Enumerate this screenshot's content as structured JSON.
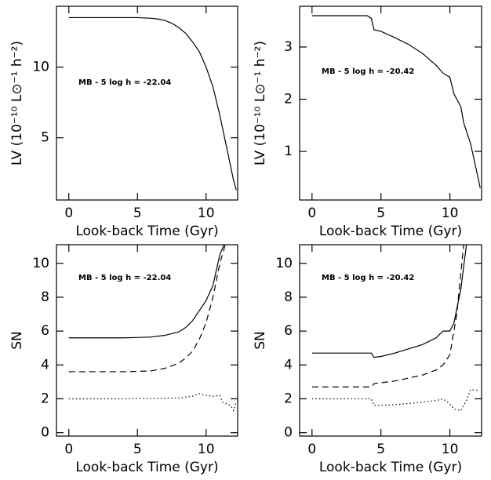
{
  "chart_data": [
    {
      "type": "line",
      "xlabel": "Look-back Time (Gyr)",
      "ylabel": "LV (10⁻¹⁰ L⊙⁻¹ h⁻²)",
      "annotation": "MB - 5 log h = -22.04",
      "xlim": [
        -0.9,
        12.3
      ],
      "xticks": [
        0,
        5,
        10
      ],
      "ylim": [
        0.6,
        14.3
      ],
      "yticks": [
        5,
        10
      ],
      "series": [
        {
          "color": "#000000",
          "style": "solid",
          "x": [
            0,
            1,
            2,
            3,
            4,
            5,
            6,
            6.5,
            7,
            7.5,
            8,
            8.5,
            9,
            9.5,
            10,
            10.5,
            11,
            11.5,
            12,
            12.2
          ],
          "values": [
            13.5,
            13.5,
            13.5,
            13.5,
            13.5,
            13.5,
            13.45,
            13.4,
            13.3,
            13.1,
            12.8,
            12.4,
            11.8,
            11.1,
            10,
            8.6,
            6.6,
            4.3,
            2.0,
            1.3
          ]
        }
      ]
    },
    {
      "type": "line",
      "xlabel": "Look-back Time (Gyr)",
      "ylabel": "LV (10⁻¹⁰ L⊙⁻¹ h⁻²)",
      "annotation": "MB - 5 log h = -20.42",
      "xlim": [
        -0.9,
        12.3
      ],
      "xticks": [
        0,
        5,
        10
      ],
      "ylim": [
        0.07,
        3.78
      ],
      "yticks": [
        1,
        2,
        3
      ],
      "series": [
        {
          "color": "#000000",
          "style": "solid",
          "x": [
            0,
            2,
            4,
            4.3,
            4.5,
            5,
            6,
            7,
            8,
            9,
            9.5,
            10,
            10.3,
            10.8,
            11,
            11.5,
            12,
            12.2
          ],
          "values": [
            3.6,
            3.6,
            3.6,
            3.55,
            3.33,
            3.3,
            3.18,
            3.05,
            2.88,
            2.65,
            2.5,
            2.42,
            2.1,
            1.85,
            1.55,
            1.15,
            0.55,
            0.3
          ]
        }
      ]
    },
    {
      "type": "line",
      "xlabel": "Look-back Time (Gyr)",
      "ylabel": "SN",
      "annotation": "MB - 5 log h = -22.04",
      "xlim": [
        -0.9,
        12.3
      ],
      "xticks": [
        0,
        5,
        10
      ],
      "ylim": [
        -0.2,
        11.1
      ],
      "yticks": [
        0,
        2,
        4,
        6,
        8,
        10
      ],
      "series": [
        {
          "color": "#000000",
          "style": "solid",
          "x": [
            0,
            2,
            4,
            5,
            6,
            7,
            8,
            8.5,
            9,
            9.5,
            10,
            10.5,
            11,
            11.3
          ],
          "values": [
            5.6,
            5.6,
            5.6,
            5.62,
            5.65,
            5.75,
            5.95,
            6.2,
            6.6,
            7.2,
            7.8,
            8.7,
            10.5,
            11.1
          ]
        },
        {
          "color": "#000000",
          "style": "dashed",
          "x": [
            0,
            2,
            4,
            5,
            6,
            7,
            8,
            8.5,
            9,
            9.5,
            10,
            10.5,
            11,
            11.4
          ],
          "values": [
            3.6,
            3.6,
            3.6,
            3.62,
            3.65,
            3.8,
            4.1,
            4.4,
            4.8,
            5.5,
            6.5,
            8,
            10,
            11.1
          ]
        },
        {
          "color": "#000000",
          "style": "dotted",
          "x": [
            0,
            2,
            4,
            6,
            8,
            9,
            9.5,
            10,
            10.5,
            11,
            11.2,
            11.8,
            12,
            12.2
          ],
          "values": [
            2,
            2,
            2,
            2.02,
            2.05,
            2.15,
            2.3,
            2.2,
            2.15,
            2.2,
            1.8,
            1.6,
            1.3,
            1.8
          ]
        }
      ]
    },
    {
      "type": "line",
      "xlabel": "Look-back Time (Gyr)",
      "ylabel": "SN",
      "annotation": "MB - 5 log h = -20.42",
      "xlim": [
        -0.9,
        12.3
      ],
      "xticks": [
        0,
        5,
        10
      ],
      "ylim": [
        -0.2,
        11.1
      ],
      "yticks": [
        0,
        2,
        4,
        6,
        8,
        10
      ],
      "series": [
        {
          "color": "#000000",
          "style": "solid",
          "x": [
            0,
            2,
            4.3,
            4.5,
            5,
            6,
            7,
            8,
            9,
            9.5,
            10,
            10.3,
            10.8,
            11.2
          ],
          "values": [
            4.7,
            4.7,
            4.7,
            4.45,
            4.5,
            4.7,
            4.95,
            5.2,
            5.6,
            6.0,
            6.0,
            6.5,
            8.5,
            11.1
          ]
        },
        {
          "color": "#000000",
          "style": "dashed",
          "x": [
            0,
            2,
            4.3,
            4.5,
            6,
            8,
            9,
            9.5,
            10,
            10.5,
            11
          ],
          "values": [
            2.7,
            2.7,
            2.7,
            2.9,
            3.05,
            3.4,
            3.7,
            4.0,
            4.6,
            7,
            11.1
          ]
        },
        {
          "color": "#000000",
          "style": "dotted",
          "x": [
            0,
            2,
            4.3,
            4.5,
            6,
            8,
            9,
            9.5,
            10,
            10.3,
            10.8,
            11.2,
            11.5,
            12
          ],
          "values": [
            2,
            2,
            2,
            1.6,
            1.65,
            1.8,
            1.9,
            2.0,
            1.7,
            1.4,
            1.3,
            1.9,
            2.55,
            2.5
          ]
        }
      ]
    }
  ]
}
